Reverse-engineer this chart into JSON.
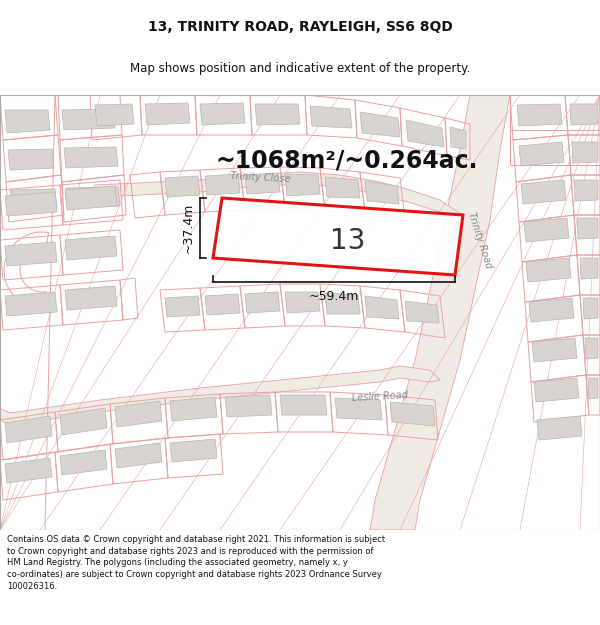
{
  "title_line1": "13, TRINITY ROAD, RAYLEIGH, SS6 8QD",
  "title_line2": "Map shows position and indicative extent of the property.",
  "area_text": "~1068m²/~0.264ac.",
  "property_number": "13",
  "dim_width": "~59.4m",
  "dim_height": "~37.4m",
  "footer_text": "Contains OS data © Crown copyright and database right 2021. This information is subject to Crown copyright and database rights 2023 and is reproduced with the permission of HM Land Registry. The polygons (including the associated geometry, namely x, y co-ordinates) are subject to Crown copyright and database rights 2023 Ordnance Survey 100026316.",
  "map_bg": "#ffffff",
  "page_bg": "#ffffff",
  "plot_line_color": "#e8a0a0",
  "building_fill": "#d8d4d0",
  "building_edge": "#b8b4b0",
  "highlight_color": "#dd0000",
  "dim_color": "#111111",
  "area_color": "#111111",
  "street_label_color": "#888888",
  "title_fontsize": 10,
  "subtitle_fontsize": 8.5,
  "area_fontsize": 17,
  "dim_fontsize": 9,
  "street_fontsize": 7
}
